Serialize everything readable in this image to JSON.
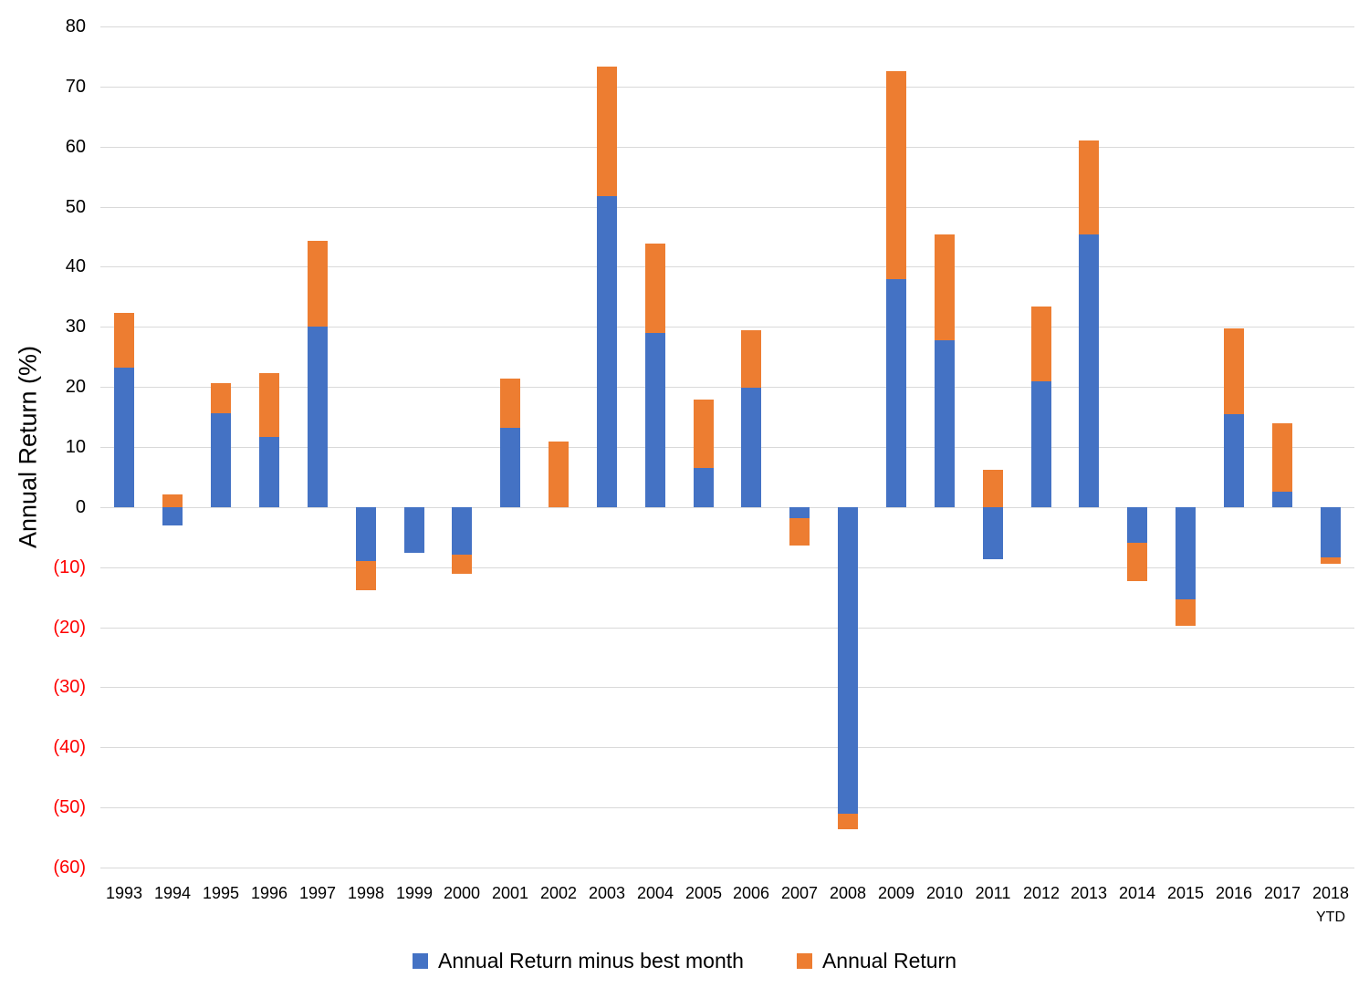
{
  "chart_data": {
    "type": "bar",
    "stacked": true,
    "title": "",
    "xlabel": "",
    "ylabel": "Annual Return (%)",
    "ylim": [
      -60,
      80
    ],
    "ytick_step": 10,
    "ytick_labels": [
      "80",
      "70",
      "60",
      "50",
      "40",
      "30",
      "20",
      "10",
      "0",
      "(10)",
      "(20)",
      "(30)",
      "(40)",
      "(50)",
      "(60)"
    ],
    "negative_tick_color": "#ff0000",
    "positive_tick_color": "#000000",
    "grid": true,
    "gridline_color": "#d9d9d9",
    "legend_position": "bottom",
    "categories": [
      {
        "label": "1993"
      },
      {
        "label": "1994"
      },
      {
        "label": "1995"
      },
      {
        "label": "1996"
      },
      {
        "label": "1997"
      },
      {
        "label": "1998"
      },
      {
        "label": "1999"
      },
      {
        "label": "2000"
      },
      {
        "label": "2001"
      },
      {
        "label": "2002"
      },
      {
        "label": "2003"
      },
      {
        "label": "2004"
      },
      {
        "label": "2005"
      },
      {
        "label": "2006"
      },
      {
        "label": "2007"
      },
      {
        "label": "2008"
      },
      {
        "label": "2009"
      },
      {
        "label": "2010"
      },
      {
        "label": "2011"
      },
      {
        "label": "2012"
      },
      {
        "label": "2013"
      },
      {
        "label": "2014"
      },
      {
        "label": "2015"
      },
      {
        "label": "2016"
      },
      {
        "label": "2017"
      },
      {
        "label": "2018",
        "sublabel": "YTD"
      }
    ],
    "series": [
      {
        "name": "Annual Return minus best month",
        "color": "#4472c4",
        "values": [
          23.2,
          -3.1,
          15.6,
          11.7,
          30.0,
          -9.0,
          -7.6,
          -7.9,
          13.2,
          0,
          51.7,
          29.0,
          6.5,
          19.9,
          -1.9,
          -51.0,
          37.9,
          27.8,
          -8.7,
          20.9,
          45.4,
          -5.9,
          -15.4,
          15.4,
          2.6,
          -8.3
        ]
      },
      {
        "name": "Annual Return",
        "color": "#ed7d31",
        "values": [
          9.1,
          2.1,
          5.1,
          10.6,
          14.3,
          -4.8,
          0,
          -3.2,
          8.2,
          10.9,
          21.6,
          14.8,
          11.4,
          9.5,
          -4.5,
          -2.7,
          34.6,
          17.6,
          6.2,
          12.5,
          15.7,
          -6.4,
          -4.4,
          14.3,
          11.3,
          -1.2
        ]
      }
    ]
  }
}
